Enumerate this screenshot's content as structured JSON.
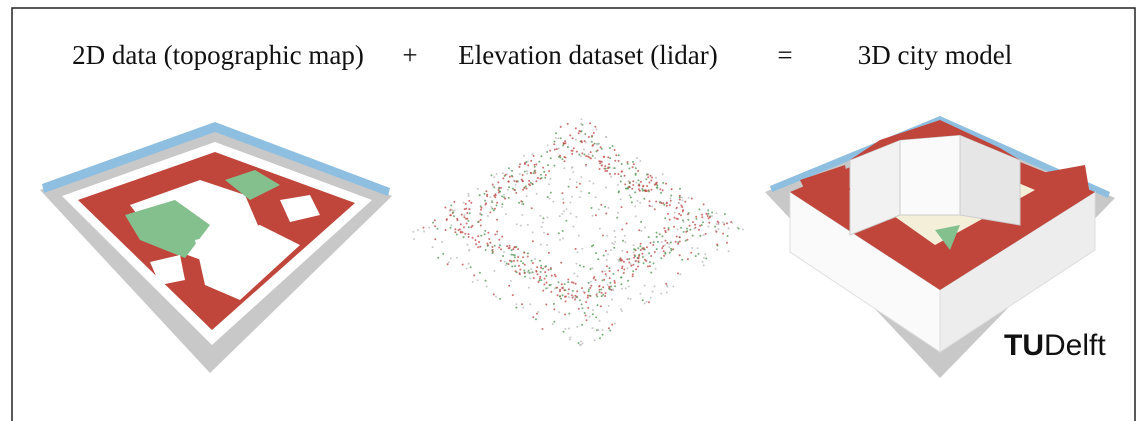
{
  "captions": [
    "2D data (topographic map)",
    "Elevation dataset (lidar)",
    "3D city model"
  ],
  "operators": [
    "+",
    "="
  ],
  "logo": {
    "primary": "TU",
    "secondary": "Delft"
  }
}
